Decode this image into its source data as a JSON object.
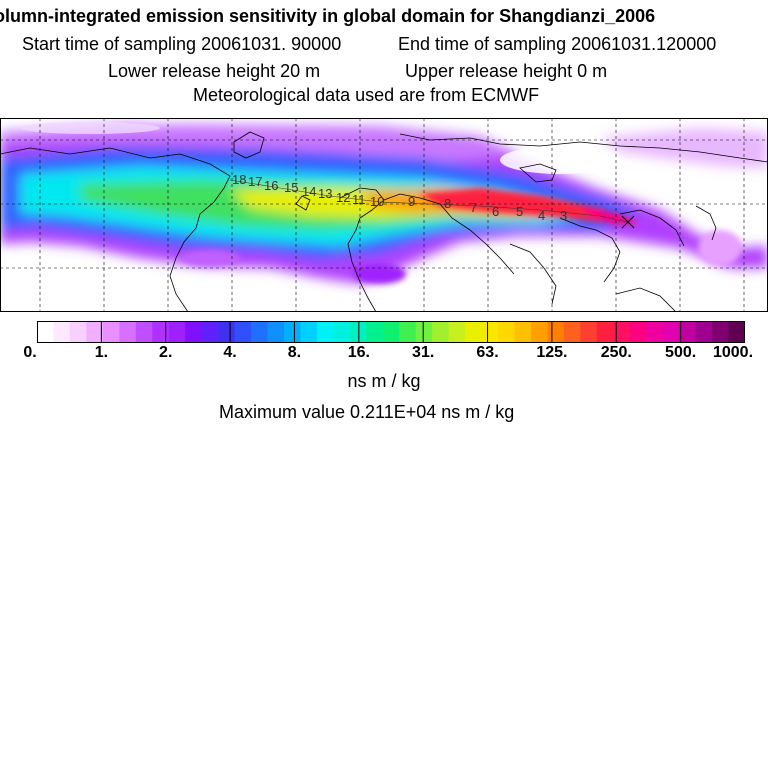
{
  "title": {
    "line1": "olumn-integrated emission sensitivity in global domain for Shangdianzi_2006",
    "start_sampling": "Start time of sampling 20061031. 90000",
    "end_sampling": "End time of sampling 20061031.120000",
    "lower_release": "Lower release height   20 m",
    "upper_release": "Upper release height    0 m",
    "met_data": "Meteorological data used are from ECMWF"
  },
  "map": {
    "trajectory_labels": [
      "18",
      "17",
      "16",
      "15",
      "14",
      "13",
      "12",
      "11",
      "10",
      "9",
      "8",
      "7",
      "6",
      "5",
      "4",
      "3"
    ],
    "receptor_marker": "x",
    "colors": {
      "ocean_purple": "#b040ff",
      "high_red": "#ff2040",
      "mid_yellow": "#e8f000",
      "green": "#40e060",
      "cyan": "#00e8f0"
    }
  },
  "colorbar": {
    "ticks": [
      "0.",
      "1.",
      "2.",
      "4.",
      "8.",
      "16.",
      "31.",
      "63.",
      "125.",
      "250.",
      "500.",
      "1000."
    ],
    "colors": [
      "#ffffff",
      "#fde8ff",
      "#f8d0ff",
      "#f0b0ff",
      "#e890ff",
      "#d870ff",
      "#c050ff",
      "#b030ff",
      "#9f20ff",
      "#8010ff",
      "#6020ff",
      "#4030f0",
      "#3050ff",
      "#2070ff",
      "#1090ff",
      "#00b0ff",
      "#00d0ff",
      "#00f0f8",
      "#00f0e0",
      "#00f0c0",
      "#00f090",
      "#10f070",
      "#40f050",
      "#70f040",
      "#a0f030",
      "#c8f020",
      "#e8f000",
      "#f8e800",
      "#ffd800",
      "#ffc000",
      "#ffa000",
      "#ff8000",
      "#ff6020",
      "#ff4030",
      "#ff2040",
      "#ff1060",
      "#ff0080",
      "#f000a0",
      "#e000b0",
      "#c000a0",
      "#a00090",
      "#800070",
      "#600050"
    ],
    "unit_label": "ns m / kg"
  },
  "max_value": "Maximum value  0.211E+04 ns m / kg"
}
